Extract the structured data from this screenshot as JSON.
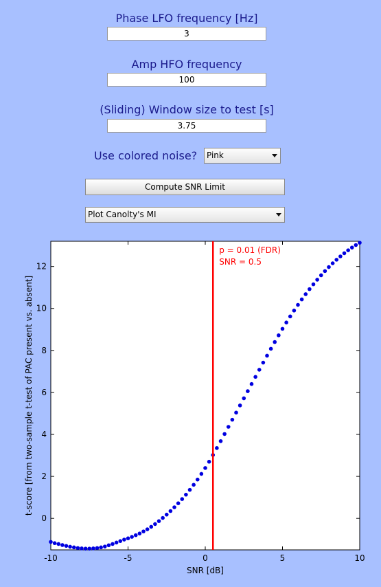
{
  "controls": {
    "phase_label": "Phase LFO frequency [Hz]",
    "phase_value": "3",
    "amp_label": "Amp HFO frequency",
    "amp_value": "100",
    "window_label": "(Sliding) Window size to test [s]",
    "window_value": "3.75",
    "noise_label": "Use colored noise?",
    "noise_selected": "Pink",
    "compute_button": "Compute SNR Limit",
    "plot_selected": "Plot Canolty's MI"
  },
  "colors": {
    "background": "#a8c0ff",
    "label_text": "#1a1a8c",
    "points": "#0000e0",
    "threshold": "#ff0000"
  },
  "chart_data": {
    "type": "scatter",
    "xlabel": "SNR [dB]",
    "ylabel": "t-score [from two-sample t-test of PAC present vs. absent]",
    "xlim": [
      -10,
      10
    ],
    "ylim": [
      -1.5,
      13.2
    ],
    "x_ticks": [
      -10,
      -5,
      0,
      5,
      10
    ],
    "y_ticks": [
      0,
      2,
      4,
      6,
      8,
      10,
      12
    ],
    "x_tick_labels": [
      "-10",
      "-5",
      "0",
      "5",
      "10"
    ],
    "y_tick_labels": [
      "0",
      "2",
      "4",
      "6",
      "8",
      "10",
      "12"
    ],
    "points": [
      [
        -10,
        -1.12
      ],
      [
        -9.75,
        -1.18
      ],
      [
        -9.5,
        -1.22
      ],
      [
        -9.25,
        -1.27
      ],
      [
        -9,
        -1.31
      ],
      [
        -8.75,
        -1.35
      ],
      [
        -8.5,
        -1.38
      ],
      [
        -8.25,
        -1.41
      ],
      [
        -8,
        -1.43
      ],
      [
        -7.75,
        -1.44
      ],
      [
        -7.5,
        -1.44
      ],
      [
        -7.25,
        -1.43
      ],
      [
        -7,
        -1.41
      ],
      [
        -6.75,
        -1.38
      ],
      [
        -6.5,
        -1.34
      ],
      [
        -6.25,
        -1.28
      ],
      [
        -6,
        -1.22
      ],
      [
        -5.75,
        -1.15
      ],
      [
        -5.5,
        -1.08
      ],
      [
        -5.25,
        -1.01
      ],
      [
        -5,
        -0.95
      ],
      [
        -4.75,
        -0.88
      ],
      [
        -4.5,
        -0.8
      ],
      [
        -4.25,
        -0.72
      ],
      [
        -4,
        -0.62
      ],
      [
        -3.75,
        -0.52
      ],
      [
        -3.5,
        -0.4
      ],
      [
        -3.25,
        -0.27
      ],
      [
        -3,
        -0.13
      ],
      [
        -2.75,
        0.02
      ],
      [
        -2.5,
        0.18
      ],
      [
        -2.25,
        0.35
      ],
      [
        -2,
        0.53
      ],
      [
        -1.75,
        0.72
      ],
      [
        -1.5,
        0.92
      ],
      [
        -1.25,
        1.13
      ],
      [
        -1,
        1.36
      ],
      [
        -0.75,
        1.6
      ],
      [
        -0.5,
        1.85
      ],
      [
        -0.25,
        2.12
      ],
      [
        0,
        2.4
      ],
      [
        0.25,
        2.7
      ],
      [
        0.5,
        3.02
      ],
      [
        0.75,
        3.35
      ],
      [
        1,
        3.68
      ],
      [
        1.25,
        4.02
      ],
      [
        1.5,
        4.36
      ],
      [
        1.75,
        4.7
      ],
      [
        2,
        5.04
      ],
      [
        2.25,
        5.38
      ],
      [
        2.5,
        5.72
      ],
      [
        2.75,
        6.06
      ],
      [
        3,
        6.4
      ],
      [
        3.25,
        6.74
      ],
      [
        3.5,
        7.08
      ],
      [
        3.75,
        7.42
      ],
      [
        4,
        7.75
      ],
      [
        4.25,
        8.08
      ],
      [
        4.5,
        8.4
      ],
      [
        4.75,
        8.72
      ],
      [
        5,
        9.03
      ],
      [
        5.25,
        9.33
      ],
      [
        5.5,
        9.62
      ],
      [
        5.75,
        9.9
      ],
      [
        6,
        10.17
      ],
      [
        6.25,
        10.43
      ],
      [
        6.5,
        10.68
      ],
      [
        6.75,
        10.92
      ],
      [
        7,
        11.15
      ],
      [
        7.25,
        11.37
      ],
      [
        7.5,
        11.58
      ],
      [
        7.75,
        11.78
      ],
      [
        8,
        11.97
      ],
      [
        8.25,
        12.15
      ],
      [
        8.5,
        12.32
      ],
      [
        8.75,
        12.48
      ],
      [
        9,
        12.63
      ],
      [
        9.25,
        12.77
      ],
      [
        9.5,
        12.9
      ],
      [
        9.75,
        13.02
      ],
      [
        10,
        13.13
      ]
    ],
    "threshold_line": {
      "x": 0.5
    },
    "annotations": [
      "p = 0.01 (FDR)",
      "SNR = 0.5"
    ]
  }
}
